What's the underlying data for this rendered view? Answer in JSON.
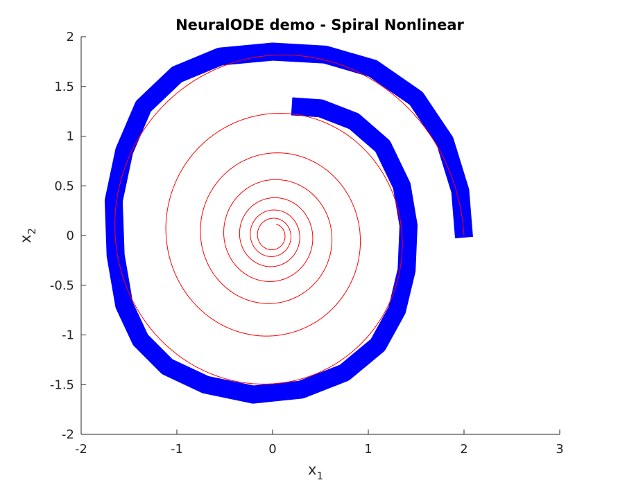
{
  "chart_data": {
    "type": "line",
    "title": "NeuralODE demo - Spiral Nonlinear",
    "xlabel": "x",
    "xlabel_sub": "1",
    "ylabel": "x",
    "ylabel_sub": "2",
    "xlim": [
      -2,
      3
    ],
    "ylim": [
      -2,
      2
    ],
    "xticks": [
      -2,
      -1,
      0,
      1,
      2,
      3
    ],
    "yticks": [
      -2,
      -1.5,
      -1,
      -0.5,
      0,
      0.5,
      1,
      1.5,
      2
    ],
    "xtick_labels": [
      "-2",
      "-1",
      "0",
      "1",
      "2",
      "3"
    ],
    "ytick_labels": [
      "-2",
      "-1.5",
      "-1",
      "-0.5",
      "0",
      "0.5",
      "1",
      "1.5",
      "2"
    ],
    "grid": false,
    "series": [
      {
        "color": "#ff0000",
        "style": "thin-line",
        "spiral": {
          "start": [
            2.0,
            0.0
          ],
          "center": [
            0.0,
            0.0
          ],
          "start_radius": 2.0,
          "end_radius": 0.12,
          "turns": 7.2,
          "direction": "counterclockwise"
        }
      },
      {
        "color": "#0000ff",
        "style": "thick-band",
        "points": [
          [
            2.0,
            -0.02
          ],
          [
            1.96,
            0.45
          ],
          [
            1.8,
            0.95
          ],
          [
            1.5,
            1.38
          ],
          [
            1.05,
            1.68
          ],
          [
            0.55,
            1.82
          ],
          [
            0.0,
            1.85
          ],
          [
            -0.55,
            1.8
          ],
          [
            -1.0,
            1.62
          ],
          [
            -1.35,
            1.3
          ],
          [
            -1.55,
            0.85
          ],
          [
            -1.66,
            0.35
          ],
          [
            -1.64,
            -0.2
          ],
          [
            -1.55,
            -0.7
          ],
          [
            -1.38,
            -1.05
          ],
          [
            -1.1,
            -1.32
          ],
          [
            -0.7,
            -1.5
          ],
          [
            -0.2,
            -1.6
          ],
          [
            0.3,
            -1.55
          ],
          [
            0.75,
            -1.38
          ],
          [
            1.1,
            -1.1
          ],
          [
            1.3,
            -0.75
          ],
          [
            1.4,
            -0.35
          ],
          [
            1.42,
            0.1
          ],
          [
            1.35,
            0.5
          ],
          [
            1.15,
            0.9
          ],
          [
            0.85,
            1.15
          ],
          [
            0.5,
            1.28
          ],
          [
            0.2,
            1.3
          ]
        ]
      }
    ]
  }
}
